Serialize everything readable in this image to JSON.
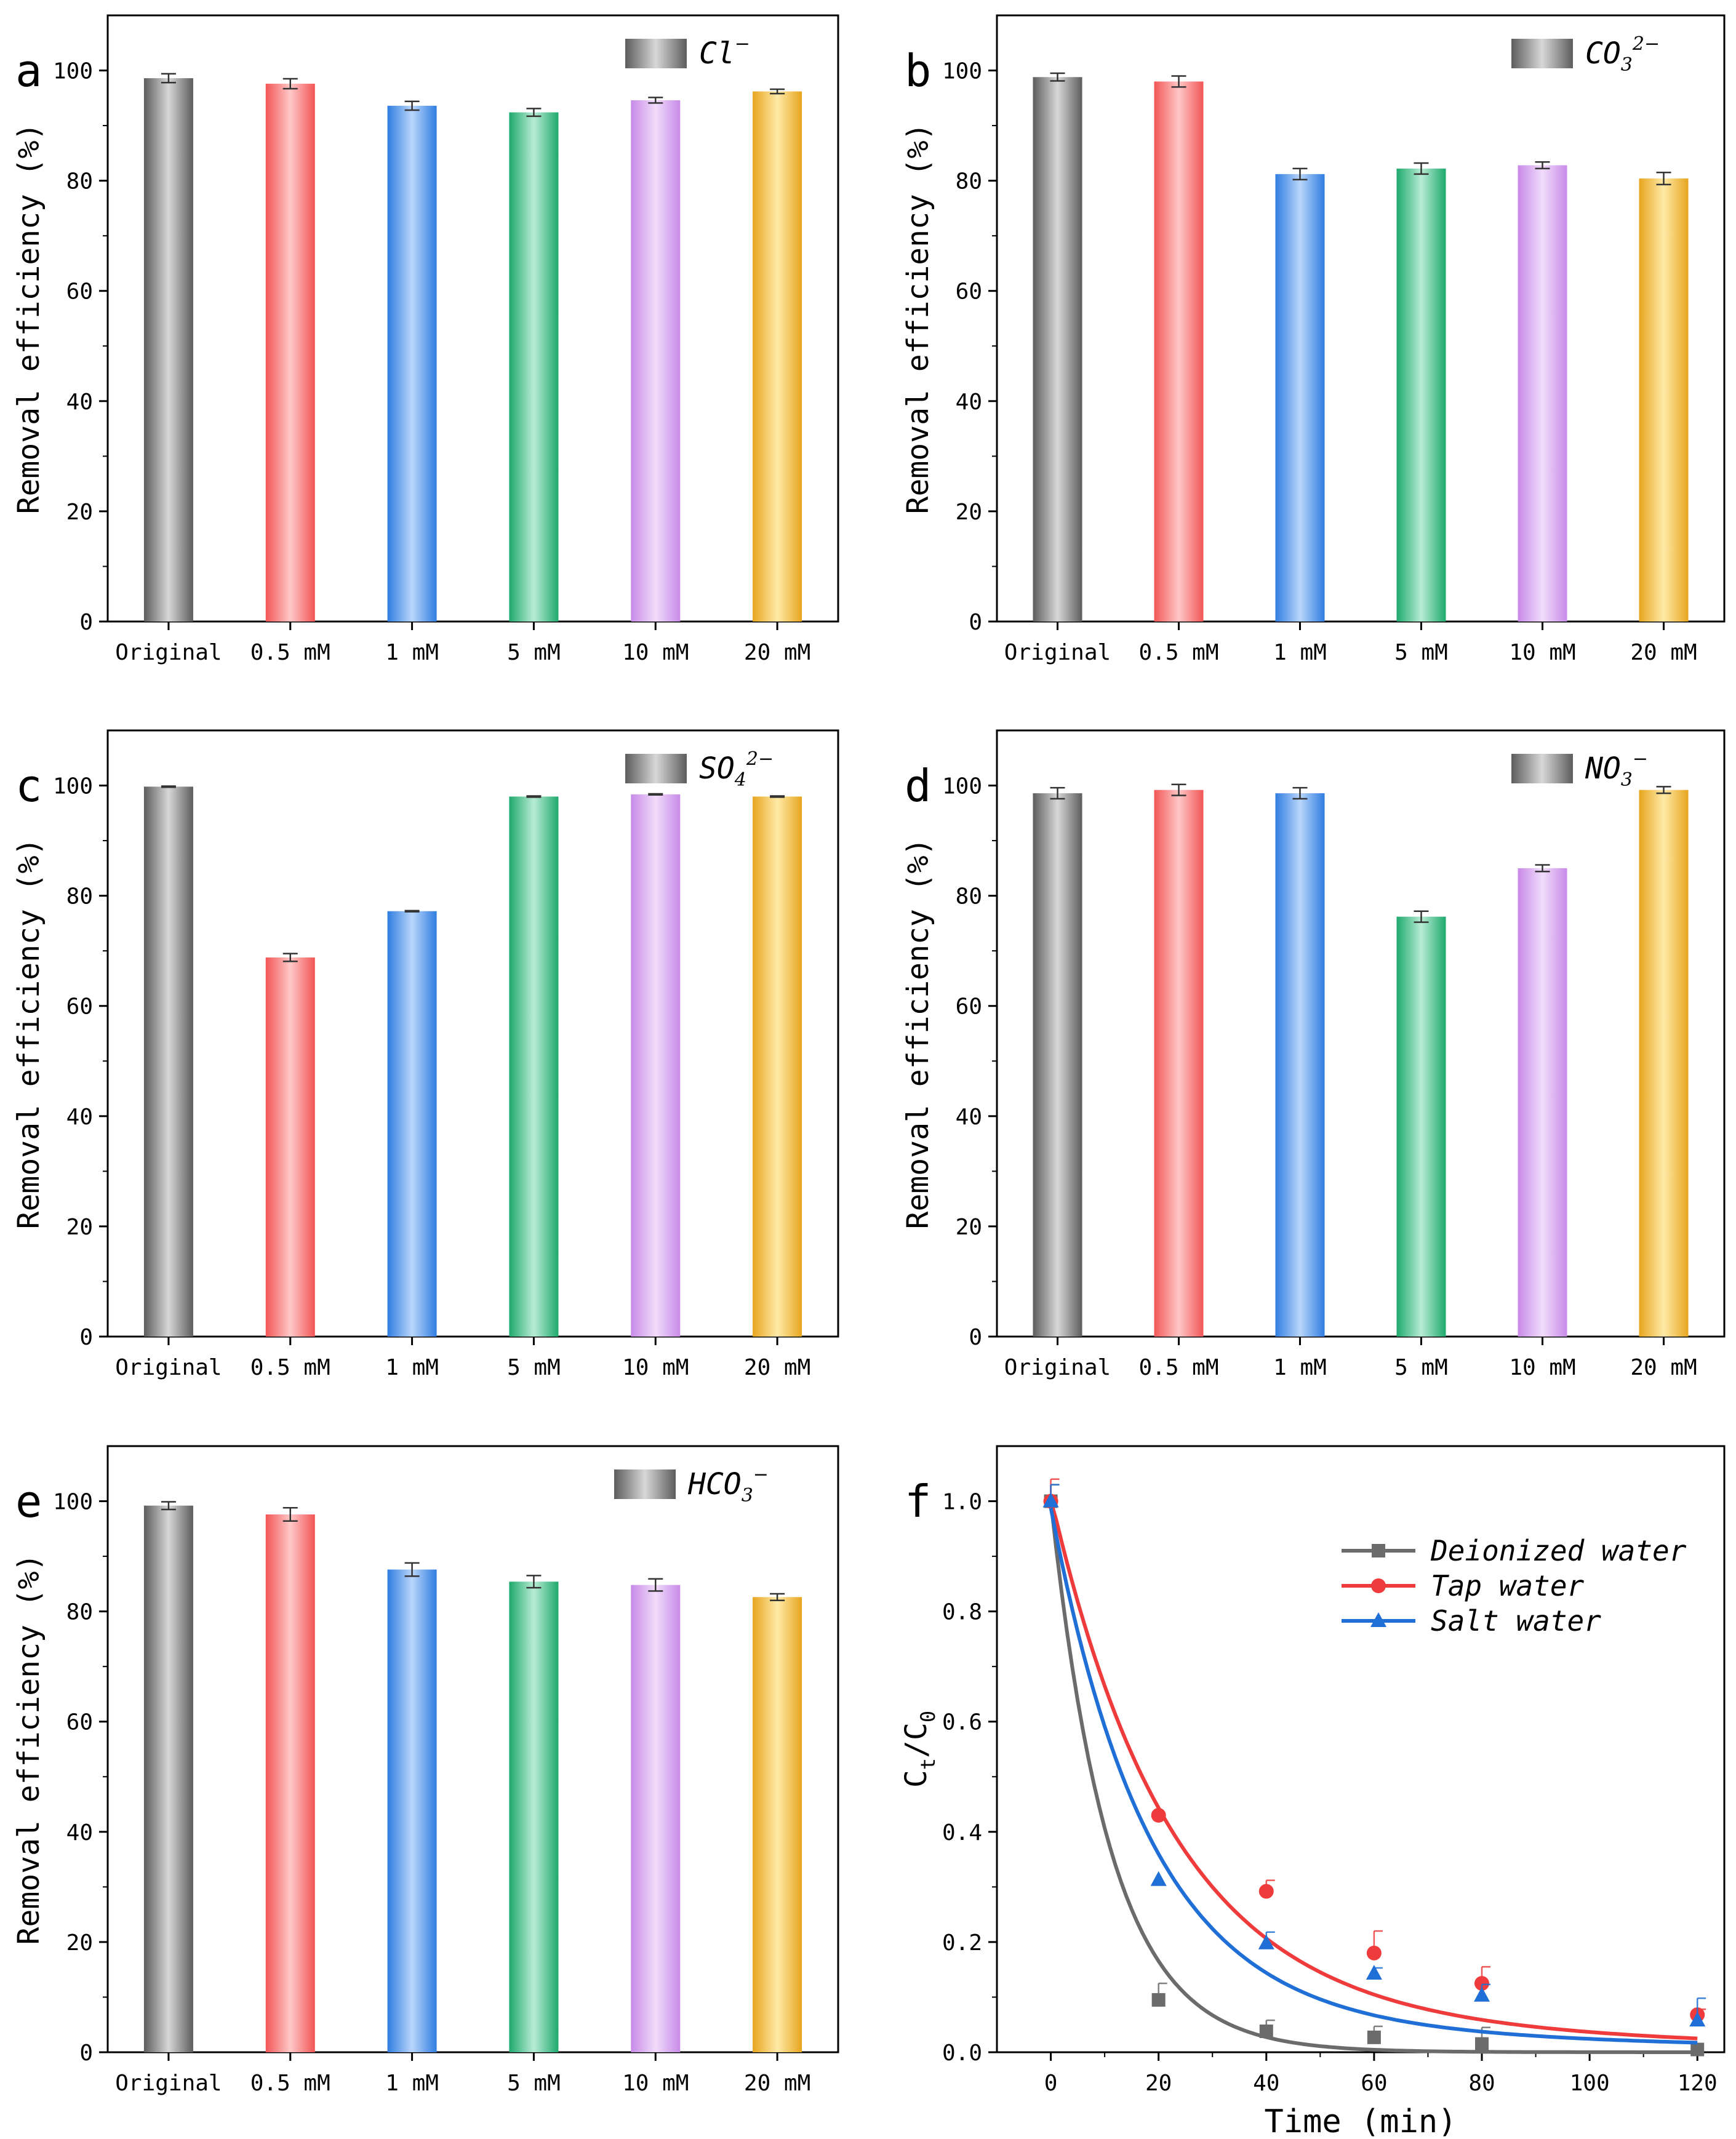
{
  "chart_data": [
    {
      "panel": "a",
      "type": "bar",
      "legend": {
        "base": "Cl",
        "sub": "",
        "sup": "−"
      },
      "ylabel": "Removal efficiency (%)",
      "categories": [
        "Original",
        "0.5 mM",
        "1 mM",
        "5 mM",
        "10 mM",
        "20 mM"
      ],
      "values": [
        98.6,
        97.6,
        93.6,
        92.4,
        94.6,
        96.2
      ],
      "errors": [
        0.8,
        0.9,
        0.8,
        0.7,
        0.5,
        0.4
      ],
      "ylim": [
        0,
        110
      ],
      "yticks": [
        0,
        20,
        40,
        60,
        80,
        100
      ]
    },
    {
      "panel": "b",
      "type": "bar",
      "legend": {
        "base": "CO",
        "sub": "3",
        "sup": "2−"
      },
      "ylabel": "Removal efficiency (%)",
      "categories": [
        "Original",
        "0.5 mM",
        "1 mM",
        "5 mM",
        "10 mM",
        "20 mM"
      ],
      "values": [
        98.8,
        98.0,
        81.2,
        82.2,
        82.8,
        80.4
      ],
      "errors": [
        0.7,
        1.0,
        1.0,
        1.0,
        0.6,
        1.1
      ],
      "ylim": [
        0,
        110
      ],
      "yticks": [
        0,
        20,
        40,
        60,
        80,
        100
      ]
    },
    {
      "panel": "c",
      "type": "bar",
      "legend": {
        "base": "SO",
        "sub": "4",
        "sup": "2−"
      },
      "ylabel": "Removal efficiency (%)",
      "categories": [
        "Original",
        "0.5 mM",
        "1 mM",
        "5 mM",
        "10 mM",
        "20 mM"
      ],
      "values": [
        99.8,
        68.8,
        77.2,
        98.0,
        98.4,
        98.0
      ],
      "errors": [
        0.1,
        0.7,
        0.1,
        0.1,
        0.1,
        0.1
      ],
      "ylim": [
        0,
        110
      ],
      "yticks": [
        0,
        20,
        40,
        60,
        80,
        100
      ]
    },
    {
      "panel": "d",
      "type": "bar",
      "legend": {
        "base": "NO",
        "sub": "3",
        "sup": "−"
      },
      "ylabel": "Removal efficiency (%)",
      "categories": [
        "Original",
        "0.5 mM",
        "1 mM",
        "5 mM",
        "10 mM",
        "20 mM"
      ],
      "values": [
        98.6,
        99.2,
        98.6,
        76.2,
        85.0,
        99.2
      ],
      "errors": [
        1.0,
        1.0,
        1.0,
        1.0,
        0.6,
        0.6
      ],
      "ylim": [
        0,
        110
      ],
      "yticks": [
        0,
        20,
        40,
        60,
        80,
        100
      ]
    },
    {
      "panel": "e",
      "type": "bar",
      "legend": {
        "base": "HCO",
        "sub": "3",
        "sup": "−"
      },
      "ylabel": "Removal efficiency (%)",
      "categories": [
        "Original",
        "0.5 mM",
        "1 mM",
        "5 mM",
        "10 mM",
        "20 mM"
      ],
      "values": [
        99.2,
        97.6,
        87.6,
        85.4,
        84.8,
        82.6
      ],
      "errors": [
        0.7,
        1.2,
        1.2,
        1.1,
        1.1,
        0.6
      ],
      "ylim": [
        0,
        110
      ],
      "yticks": [
        0,
        20,
        40,
        60,
        80,
        100
      ]
    },
    {
      "panel": "f",
      "type": "line",
      "xlabel": "Time (min)",
      "ylabel": {
        "base": "C",
        "sub1": "t",
        "mid": "/C",
        "sub2": "0"
      },
      "xlim": [
        -10,
        125
      ],
      "ylim": [
        0,
        1.1
      ],
      "xticks": [
        0,
        20,
        40,
        60,
        80,
        100,
        120
      ],
      "yticks": [
        0.0,
        0.2,
        0.4,
        0.6,
        0.8,
        1.0
      ],
      "series": [
        {
          "name": "Deionized water",
          "color": "#6b6b6b",
          "marker": "square",
          "x": [
            0,
            20,
            40,
            60,
            80,
            120
          ],
          "y": [
            1.0,
            0.095,
            0.038,
            0.027,
            0.015,
            0.005
          ],
          "errors": [
            0.03,
            0.03,
            0.02,
            0.02,
            0.03,
            0.0
          ],
          "fit_k": 0.09,
          "fit_plateau": 0.0
        },
        {
          "name": "Tap water",
          "color": "#ef3b3b",
          "marker": "circle",
          "x": [
            0,
            20,
            40,
            60,
            80,
            120
          ],
          "y": [
            1.0,
            0.43,
            0.292,
            0.18,
            0.125,
            0.068
          ],
          "errors": [
            0.04,
            0.0,
            0.02,
            0.04,
            0.03,
            0.01
          ],
          "fit_k": 0.045,
          "fit_plateau": 0.0
        },
        {
          "name": "Salt water",
          "color": "#1f6fd6",
          "marker": "triangle",
          "x": [
            0,
            20,
            40,
            60,
            80,
            120
          ],
          "y": [
            1.0,
            0.313,
            0.198,
            0.143,
            0.103,
            0.058
          ],
          "errors": [
            0.03,
            0.0,
            0.02,
            0.01,
            0.02,
            0.04
          ],
          "fit_k": 0.055,
          "fit_plateau": 0.0
        }
      ]
    }
  ]
}
